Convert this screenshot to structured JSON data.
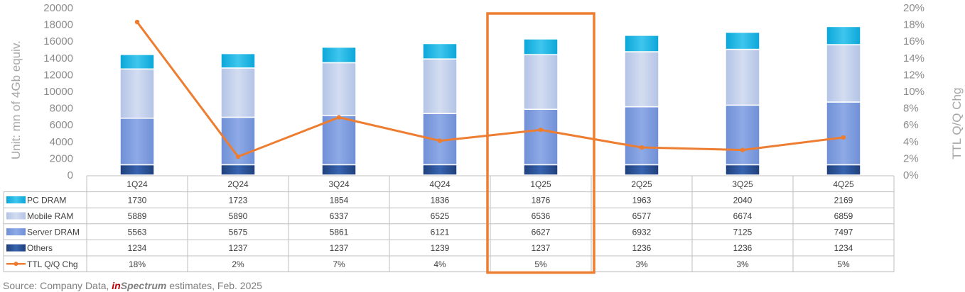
{
  "chart_data": {
    "type": "bar",
    "stacked": true,
    "categories": [
      "1Q24",
      "2Q24",
      "3Q24",
      "4Q24",
      "1Q25",
      "2Q25",
      "3Q25",
      "4Q25"
    ],
    "ylabel": "Unit: mn of 4Gb equiv.",
    "ylim": [
      0,
      20000
    ],
    "yticks": [
      "0",
      "2000",
      "4000",
      "6000",
      "8000",
      "10000",
      "12000",
      "14000",
      "16000",
      "18000",
      "20000"
    ],
    "y2label": "TTL Q/Q Chg",
    "y2lim": [
      0,
      20
    ],
    "y2ticks": [
      "0%",
      "2%",
      "4%",
      "6%",
      "8%",
      "10%",
      "12%",
      "14%",
      "16%",
      "18%",
      "20%"
    ],
    "legend_position": "data-table",
    "highlighted_category": "1Q25",
    "series": [
      {
        "name": "PC DRAM",
        "color": "#12b3e3",
        "values": [
          1730,
          1723,
          1854,
          1836,
          1876,
          1963,
          2040,
          2169
        ]
      },
      {
        "name": "Mobile RAM",
        "color": "#bfcde9",
        "values": [
          5889,
          5890,
          6337,
          6525,
          6536,
          6577,
          6674,
          6859
        ]
      },
      {
        "name": "Server DRAM",
        "color": "#7f9ddf",
        "values": [
          5563,
          5675,
          5861,
          6121,
          6627,
          6932,
          7125,
          7497
        ]
      },
      {
        "name": "Others",
        "color": "#2f5597",
        "values": [
          1234,
          1237,
          1237,
          1239,
          1237,
          1236,
          1236,
          1234
        ]
      }
    ],
    "line_series": {
      "name": "TTL Q/Q Chg",
      "color": "#ed7d31",
      "axis": "right",
      "values": [
        18.3,
        2.2,
        6.9,
        4.1,
        5.4,
        3.3,
        3.0,
        4.5
      ],
      "labels": [
        "18%",
        "2%",
        "7%",
        "4%",
        "5%",
        "3%",
        "3%",
        "5%"
      ]
    },
    "table_rows": [
      {
        "name": "PC DRAM",
        "marker": "box",
        "cells": [
          "1730",
          "1723",
          "1854",
          "1836",
          "1876",
          "1963",
          "2040",
          "2169"
        ]
      },
      {
        "name": "Mobile RAM",
        "marker": "box",
        "cells": [
          "5889",
          "5890",
          "6337",
          "6525",
          "6536",
          "6577",
          "6674",
          "6859"
        ]
      },
      {
        "name": "Server DRAM",
        "marker": "box",
        "cells": [
          "5563",
          "5675",
          "5861",
          "6121",
          "6627",
          "6932",
          "7125",
          "7497"
        ]
      },
      {
        "name": "Others",
        "marker": "box",
        "cells": [
          "1234",
          "1237",
          "1237",
          "1239",
          "1237",
          "1236",
          "1236",
          "1234"
        ]
      },
      {
        "name": "TTL Q/Q Chg",
        "marker": "line",
        "cells": [
          "18%",
          "2%",
          "7%",
          "4%",
          "5%",
          "3%",
          "3%",
          "5%"
        ]
      }
    ],
    "highlight_color": "#ed7d31"
  },
  "source": {
    "prefix": "Source: Company Data, ",
    "brand_in": "in",
    "brand_rest": "Spectrum",
    "suffix": " estimates, Feb. 2025"
  }
}
